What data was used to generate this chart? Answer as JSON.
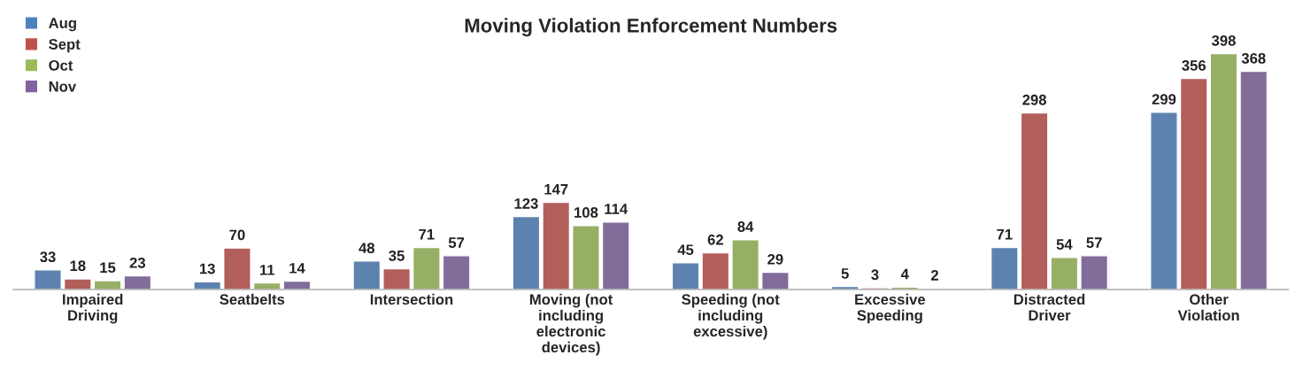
{
  "chart_data": {
    "type": "bar",
    "title": "Moving Violation Enforcement Numbers",
    "categories": [
      "Impaired Driving",
      "Seatbelts",
      "Intersection",
      "Moving (not including electronic devices)",
      "Speeding (not including excessive)",
      "Excessive Speeding",
      "Distracted Driver",
      "Other Violation"
    ],
    "series": [
      {
        "name": "Aug",
        "color": "#4f81bd",
        "values": [
          33,
          13,
          48,
          123,
          45,
          5,
          71,
          299
        ]
      },
      {
        "name": "Sept",
        "color": "#c0504d",
        "values": [
          18,
          70,
          35,
          147,
          62,
          3,
          298,
          356
        ]
      },
      {
        "name": "Oct",
        "color": "#9bbb59",
        "values": [
          15,
          11,
          71,
          108,
          84,
          4,
          54,
          398
        ]
      },
      {
        "name": "Nov",
        "color": "#8064a2",
        "values": [
          23,
          14,
          57,
          114,
          29,
          2,
          57,
          368
        ]
      }
    ],
    "data_labels": true,
    "legend": "top left",
    "grid": false
  }
}
